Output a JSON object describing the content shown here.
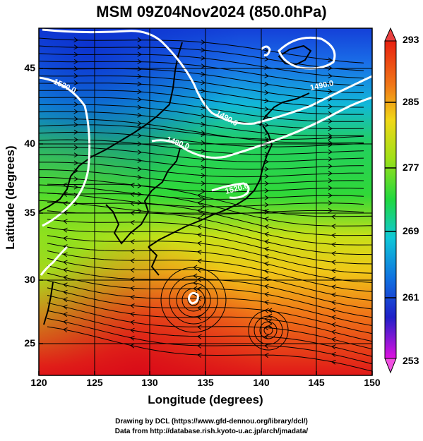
{
  "title": "MSM 09Z04Nov2024 (850.0hPa)",
  "x_axis": {
    "label": "Longitude (degrees)",
    "ticks": [
      "120",
      "125",
      "130",
      "135",
      "140",
      "145",
      "150"
    ]
  },
  "y_axis": {
    "label": "Latitude  (degrees)",
    "ticks": [
      "25",
      "30",
      "35",
      "40",
      "45"
    ]
  },
  "colorbar": {
    "labels": [
      "293",
      "285",
      "277",
      "269",
      "261",
      "253"
    ]
  },
  "contour_labels": [
    "1520.0",
    "1490.0",
    "1490.0",
    "1490.0",
    "1520.0"
  ],
  "credits": {
    "line1": "Drawing by DCL (https://www.gfd-dennou.org/library/dcl/)",
    "line2": "Data from http://database.rish.kyoto-u.ac.jp/arch/jmadata/"
  },
  "colors": {
    "cold": "#1440d8",
    "cool": "#10c8e0",
    "mid": "#20d840",
    "warm": "#e8e010",
    "hot": "#e82818",
    "contour": "#ffffff",
    "streamline": "#000000"
  },
  "chart_data": {
    "type": "map",
    "x_range": [
      120,
      150
    ],
    "y_range": [
      22.5,
      48
    ],
    "colorbar_range": [
      253,
      293
    ]
  }
}
